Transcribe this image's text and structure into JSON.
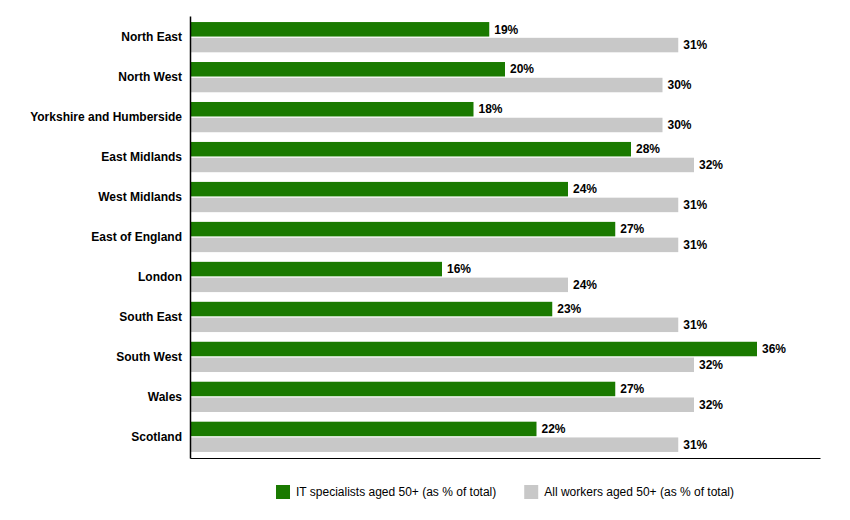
{
  "chart_data": {
    "type": "bar",
    "orientation": "horizontal",
    "categories": [
      "North East",
      "North West",
      "Yorkshire and Humberside",
      "East Midlands",
      "West Midlands",
      "East of England",
      "London",
      "South East",
      "South West",
      "Wales",
      "Scotland"
    ],
    "series": [
      {
        "name": "IT specialists aged 50+ (as % of total)",
        "color": "#1a7a00",
        "values": [
          19,
          20,
          18,
          28,
          24,
          27,
          16,
          23,
          36,
          27,
          22
        ],
        "value_labels": [
          "19%",
          "20%",
          "18%",
          "28%",
          "24%",
          "27%",
          "16%",
          "23%",
          "36%",
          "27%",
          "22%"
        ]
      },
      {
        "name": "All workers aged 50+ (as % of total)",
        "color": "#c8c8c8",
        "values": [
          31,
          30,
          30,
          32,
          31,
          31,
          24,
          31,
          32,
          32,
          31
        ],
        "value_labels": [
          "31%",
          "30%",
          "30%",
          "32%",
          "31%",
          "31%",
          "24%",
          "31%",
          "32%",
          "32%",
          "31%"
        ]
      }
    ],
    "xlim": [
      0,
      40
    ],
    "xticks": [],
    "data_labels": true,
    "tick_labels": "y",
    "legend": "bottom",
    "grid": false
  }
}
